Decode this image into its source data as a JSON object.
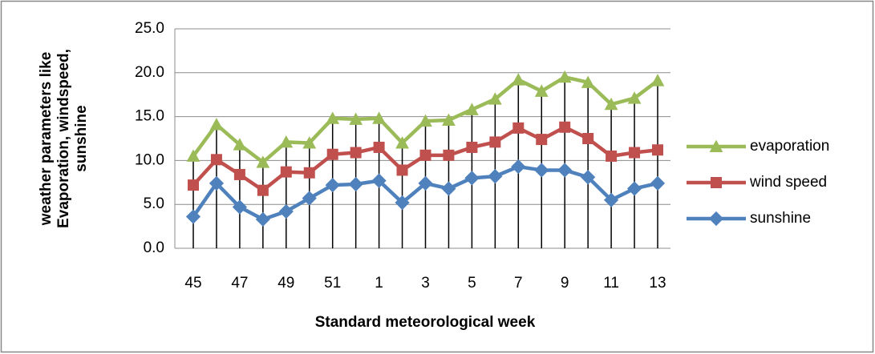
{
  "chart_data": {
    "type": "line",
    "x_label": "Standard meteorological week",
    "y_label": [
      "weather parameters like",
      "Evaporation, windspeed,",
      "sunshine"
    ],
    "categories": [
      "45",
      null,
      "47",
      null,
      "49",
      null,
      "51",
      null,
      "1",
      null,
      "3",
      null,
      "5",
      null,
      "7",
      null,
      "9",
      null,
      "11",
      null,
      "13"
    ],
    "series": [
      {
        "name": "evaporation",
        "color": "#9bbb59",
        "marker": "triangle",
        "values": [
          10.5,
          14.1,
          11.8,
          9.8,
          12.1,
          12.0,
          14.8,
          14.7,
          14.8,
          12.0,
          14.5,
          14.6,
          15.8,
          17.0,
          19.2,
          17.9,
          19.5,
          18.9,
          16.4,
          17.1,
          19.1
        ]
      },
      {
        "name": "wind speed",
        "color": "#c0504d",
        "marker": "square",
        "values": [
          7.2,
          10.1,
          8.4,
          6.6,
          8.7,
          8.6,
          10.7,
          10.9,
          11.5,
          8.9,
          10.6,
          10.6,
          11.5,
          12.1,
          13.7,
          12.4,
          13.8,
          12.5,
          10.5,
          10.9,
          11.2
        ]
      },
      {
        "name": "sunshine",
        "color": "#4f81bd",
        "marker": "diamond",
        "values": [
          3.6,
          7.4,
          4.7,
          3.3,
          4.2,
          5.7,
          7.2,
          7.3,
          7.7,
          5.2,
          7.4,
          6.8,
          8.0,
          8.2,
          9.3,
          8.9,
          8.9,
          8.1,
          5.5,
          6.8,
          7.4
        ]
      }
    ],
    "ylim": [
      0,
      25
    ],
    "yticks": [
      {
        "value": 0,
        "label": "0.0"
      },
      {
        "value": 5,
        "label": "5.0"
      },
      {
        "value": 10,
        "label": "10.0"
      },
      {
        "value": 15,
        "label": "15.0"
      },
      {
        "value": 20,
        "label": "20.0"
      },
      {
        "value": 25,
        "label": "25.0"
      }
    ],
    "grid": true,
    "drop_lines": true,
    "legend": "right"
  }
}
